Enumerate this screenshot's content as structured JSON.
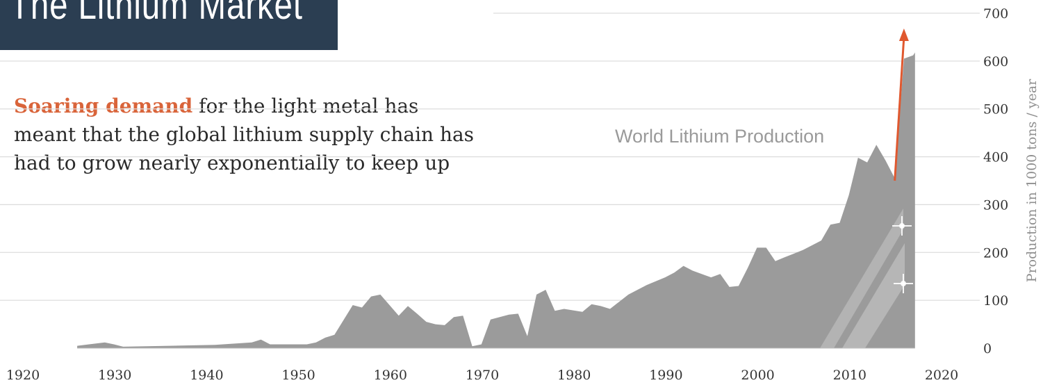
{
  "header": {
    "title": "The Lithium Market"
  },
  "subtitle": {
    "accent": "Soaring demand",
    "line1_rest": " for the light metal has",
    "line2": "meant that the global lithium supply chain has",
    "line3": "had to grow nearly exponentially to keep up"
  },
  "colors": {
    "title_bg": "#2b3e52",
    "accent": "#d9643a",
    "area": "#9b9b9b",
    "arrow": "#e0582f",
    "grid": "#dddddd"
  },
  "chart_data": {
    "type": "area",
    "series_label": "World Lithium Production",
    "ylabel": "Production in 1000 tons / year",
    "xlim": [
      1920,
      2020
    ],
    "ylim": [
      0,
      700
    ],
    "x_ticks": [
      1920,
      1930,
      1940,
      1950,
      1960,
      1970,
      1980,
      1990,
      2000,
      2010,
      2020
    ],
    "y_ticks": [
      0,
      100,
      200,
      300,
      400,
      500,
      600,
      700
    ],
    "grid": true,
    "x": [
      1925,
      1928,
      1929,
      1930,
      1935,
      1940,
      1944,
      1945,
      1946,
      1950,
      1951,
      1952,
      1953,
      1955,
      1956,
      1957,
      1958,
      1960,
      1961,
      1962,
      1963,
      1964,
      1965,
      1966,
      1967,
      1968,
      1969,
      1970,
      1972,
      1973,
      1974,
      1975,
      1976,
      1977,
      1978,
      1980,
      1981,
      1982,
      1983,
      1985,
      1987,
      1989,
      1990,
      1991,
      1992,
      1994,
      1995,
      1996,
      1997,
      1998,
      1999,
      2000,
      2001,
      2002,
      2004,
      2006,
      2007,
      2008,
      2009,
      2010,
      2011,
      2012,
      2013,
      2014,
      2015,
      2016,
      2016.2
    ],
    "y": [
      5,
      12,
      8,
      3,
      5,
      7,
      12,
      18,
      8,
      8,
      12,
      22,
      28,
      90,
      85,
      108,
      112,
      68,
      88,
      72,
      55,
      50,
      48,
      65,
      68,
      4,
      8,
      60,
      70,
      72,
      25,
      112,
      122,
      78,
      82,
      76,
      92,
      88,
      82,
      112,
      132,
      148,
      158,
      172,
      162,
      148,
      155,
      128,
      130,
      168,
      210,
      210,
      182,
      190,
      205,
      225,
      258,
      262,
      320,
      398,
      388,
      425,
      392,
      355,
      605,
      612,
      618
    ],
    "trend_arrow": {
      "x_from": 2014.0,
      "y_from": 350,
      "x_to": 2015.0,
      "y_to": 668
    }
  }
}
